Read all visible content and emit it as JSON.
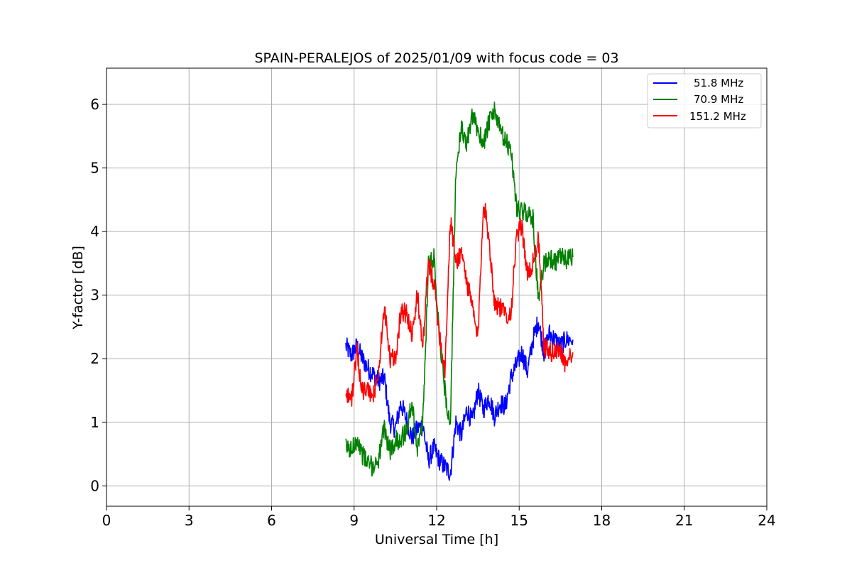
{
  "chart_data": {
    "type": "line",
    "title": "SPAIN-PERALEJOS of 2025/01/09 with focus code = 03",
    "xlabel": "Universal Time [h]",
    "ylabel": "Y-factor [dB]",
    "xlim": [
      0,
      24
    ],
    "ylim": [
      -0.32,
      6.57
    ],
    "xticks": [
      0,
      3,
      6,
      9,
      12,
      15,
      18,
      21,
      24
    ],
    "xtick_labels": [
      "0",
      "3",
      "6",
      "9",
      "12",
      "15",
      "18",
      "21",
      "24"
    ],
    "yticks": [
      0,
      1,
      2,
      3,
      4,
      5,
      6
    ],
    "ytick_labels": [
      "0",
      "1",
      "2",
      "3",
      "4",
      "5",
      "6"
    ],
    "grid": true,
    "legend_position": "top-right",
    "series": [
      {
        "name": "51.8 MHz",
        "color": "#0000ff",
        "x": [
          8.7,
          8.9,
          9.1,
          9.3,
          9.5,
          9.7,
          9.9,
          10.1,
          10.3,
          10.5,
          10.7,
          10.9,
          11.1,
          11.3,
          11.5,
          11.7,
          11.9,
          12.1,
          12.3,
          12.5,
          12.7,
          12.9,
          13.1,
          13.3,
          13.5,
          13.7,
          13.9,
          14.1,
          14.3,
          14.5,
          14.7,
          14.9,
          15.1,
          15.3,
          15.5,
          15.7,
          15.9,
          16.1,
          16.3,
          16.5,
          16.7,
          16.95
        ],
        "y": [
          2.2,
          2.05,
          2.2,
          2.0,
          1.85,
          1.75,
          1.65,
          1.7,
          1.0,
          0.9,
          1.3,
          1.05,
          0.75,
          0.9,
          0.95,
          0.4,
          0.6,
          0.4,
          0.3,
          0.2,
          1.0,
          0.8,
          1.2,
          1.0,
          1.5,
          1.2,
          1.4,
          1.1,
          1.3,
          1.25,
          1.7,
          1.9,
          2.1,
          1.8,
          2.3,
          2.6,
          2.1,
          2.4,
          2.3,
          2.2,
          2.3,
          2.3
        ]
      },
      {
        "name": "70.9 MHz",
        "color": "#008000",
        "x": [
          8.7,
          8.9,
          9.1,
          9.3,
          9.5,
          9.7,
          9.9,
          10.1,
          10.3,
          10.5,
          10.7,
          10.9,
          11.1,
          11.3,
          11.5,
          11.7,
          11.9,
          12.1,
          12.3,
          12.5,
          12.7,
          12.9,
          13.1,
          13.3,
          13.5,
          13.7,
          13.9,
          14.1,
          14.3,
          14.5,
          14.7,
          14.9,
          15.1,
          15.3,
          15.5,
          15.7,
          15.9,
          16.1,
          16.3,
          16.5,
          16.7,
          16.95
        ],
        "y": [
          0.6,
          0.55,
          0.75,
          0.5,
          0.35,
          0.3,
          0.45,
          0.9,
          0.55,
          0.7,
          0.75,
          0.85,
          1.3,
          0.6,
          1.0,
          3.5,
          3.6,
          2.4,
          1.5,
          0.9,
          5.0,
          5.6,
          5.4,
          5.8,
          5.6,
          5.4,
          5.7,
          5.9,
          5.6,
          5.4,
          5.3,
          4.4,
          4.3,
          4.3,
          4.2,
          2.9,
          3.5,
          3.6,
          3.5,
          3.6,
          3.55,
          3.6
        ]
      },
      {
        "name": "151.2 MHz",
        "color": "#ff0000",
        "x": [
          8.7,
          8.9,
          9.1,
          9.3,
          9.5,
          9.7,
          9.9,
          10.1,
          10.3,
          10.5,
          10.7,
          10.9,
          11.1,
          11.3,
          11.5,
          11.7,
          11.9,
          12.1,
          12.3,
          12.5,
          12.7,
          12.9,
          13.1,
          13.3,
          13.5,
          13.7,
          13.9,
          14.1,
          14.3,
          14.5,
          14.7,
          14.9,
          15.1,
          15.3,
          15.5,
          15.7,
          15.9,
          16.1,
          16.3,
          16.5,
          16.7,
          16.95
        ],
        "y": [
          1.5,
          1.35,
          2.1,
          1.5,
          1.5,
          1.4,
          1.85,
          2.8,
          2.0,
          2.0,
          2.75,
          2.7,
          2.4,
          3.0,
          2.2,
          3.5,
          3.2,
          2.4,
          1.8,
          4.2,
          3.5,
          3.7,
          3.2,
          2.8,
          2.3,
          4.5,
          3.9,
          2.9,
          2.8,
          2.7,
          2.7,
          3.9,
          4.1,
          3.3,
          3.5,
          3.9,
          2.2,
          2.1,
          2.1,
          2.15,
          1.9,
          2.1
        ]
      }
    ]
  }
}
